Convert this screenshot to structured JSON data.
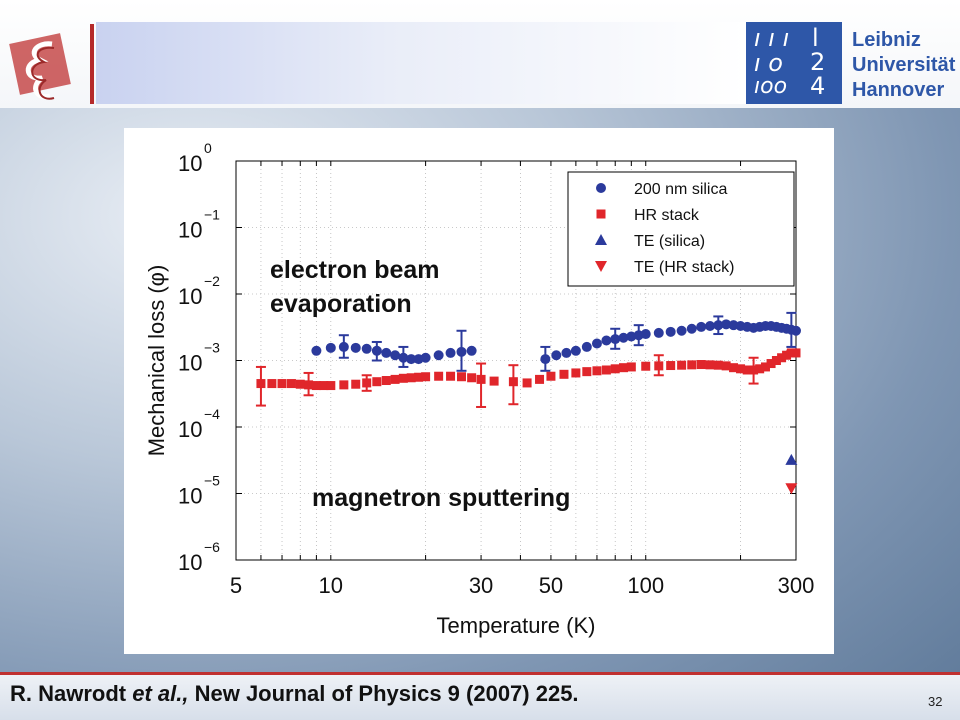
{
  "slide": {
    "logo_right": {
      "line1": "Leibniz",
      "line2": "Universität",
      "line3": "Hannover"
    },
    "page_number": "32",
    "citation": {
      "authors": "R. Nawrodt ",
      "etal": "et al.,",
      "rest": " New Journal of Physics 9 (2007) 225."
    }
  },
  "annotations": {
    "ebeam_line1": "electron beam",
    "ebeam_line2": "evaporation",
    "sputter": "magnetron sputtering"
  },
  "colors": {
    "blue": "#2b3a9c",
    "red": "#e0262b"
  },
  "chart_data": {
    "type": "scatter",
    "title": "",
    "xlabel": "Temperature (K)",
    "ylabel": "Mechanical loss (φ)",
    "xscale": "log",
    "yscale": "log",
    "xlim": [
      5,
      300
    ],
    "ylim": [
      1e-06,
      1
    ],
    "xticks": [
      5,
      10,
      30,
      50,
      100,
      300
    ],
    "xtick_labels": [
      "5",
      "10",
      "30",
      "50",
      "100",
      "300"
    ],
    "yticks": [
      1e-06,
      1e-05,
      0.0001,
      0.001,
      0.01,
      0.1,
      1
    ],
    "ytick_exponents": [
      "−6",
      "−5",
      "−4",
      "−3",
      "−2",
      "−1",
      "0"
    ],
    "grid": true,
    "legend_position": "top-right",
    "series": [
      {
        "name": "200 nm silica",
        "marker": "circle",
        "color": "#2b3a9c",
        "x": [
          9,
          10,
          11,
          12,
          13,
          14,
          15,
          16,
          17,
          18,
          19,
          20,
          22,
          24,
          26,
          28,
          48,
          52,
          56,
          60,
          65,
          70,
          75,
          80,
          85,
          90,
          95,
          100,
          110,
          120,
          130,
          140,
          150,
          160,
          170,
          180,
          190,
          200,
          210,
          220,
          230,
          240,
          250,
          260,
          270,
          280,
          290,
          300
        ],
        "y": [
          0.0014,
          0.00155,
          0.0016,
          0.00155,
          0.0015,
          0.0014,
          0.0013,
          0.0012,
          0.0011,
          0.00105,
          0.00105,
          0.0011,
          0.0012,
          0.0013,
          0.00135,
          0.0014,
          0.00105,
          0.0012,
          0.0013,
          0.0014,
          0.0016,
          0.0018,
          0.002,
          0.0021,
          0.0022,
          0.0023,
          0.0024,
          0.0025,
          0.0026,
          0.0027,
          0.0028,
          0.003,
          0.0032,
          0.0033,
          0.0034,
          0.0035,
          0.0034,
          0.0033,
          0.0032,
          0.0031,
          0.0032,
          0.0033,
          0.0033,
          0.0032,
          0.0031,
          0.003,
          0.0029,
          0.0028
        ]
      },
      {
        "name": "HR stack",
        "marker": "square",
        "color": "#e0262b",
        "x": [
          6,
          6.5,
          7,
          7.5,
          8,
          8.5,
          9,
          9.5,
          10,
          11,
          12,
          13,
          14,
          15,
          16,
          17,
          18,
          19,
          20,
          22,
          24,
          26,
          28,
          30,
          33,
          38,
          42,
          46,
          50,
          55,
          60,
          65,
          70,
          75,
          80,
          85,
          90,
          100,
          110,
          120,
          130,
          140,
          150,
          160,
          170,
          180,
          190,
          200,
          210,
          220,
          230,
          240,
          250,
          260,
          270,
          280,
          290,
          300
        ],
        "y": [
          0.00045,
          0.00045,
          0.00045,
          0.00045,
          0.00044,
          0.00043,
          0.00042,
          0.00042,
          0.00042,
          0.00043,
          0.00044,
          0.00046,
          0.00048,
          0.0005,
          0.00052,
          0.00054,
          0.00055,
          0.00056,
          0.00057,
          0.00058,
          0.00058,
          0.00057,
          0.00055,
          0.00052,
          0.00049,
          0.00048,
          0.00046,
          0.00052,
          0.00058,
          0.00062,
          0.00065,
          0.00068,
          0.0007,
          0.00072,
          0.00075,
          0.00078,
          0.0008,
          0.00082,
          0.00083,
          0.00084,
          0.00085,
          0.00086,
          0.00087,
          0.00086,
          0.00085,
          0.00083,
          0.00078,
          0.00075,
          0.00072,
          0.00072,
          0.00075,
          0.0008,
          0.0009,
          0.001,
          0.0011,
          0.0012,
          0.0013,
          0.0013
        ]
      },
      {
        "name": "TE (silica)",
        "marker": "triangle-up",
        "color": "#2b3a9c",
        "x": [
          290
        ],
        "y": [
          3.2e-05
        ]
      },
      {
        "name": "TE (HR stack)",
        "marker": "triangle-down",
        "color": "#e0262b",
        "x": [
          290
        ],
        "y": [
          1.2e-05
        ]
      }
    ],
    "error_bars": [
      {
        "series": "200 nm silica",
        "x": 11,
        "y": 0.0016,
        "low": 0.0011,
        "high": 0.0024
      },
      {
        "series": "200 nm silica",
        "x": 14,
        "y": 0.0014,
        "low": 0.001,
        "high": 0.0019
      },
      {
        "series": "200 nm silica",
        "x": 17,
        "y": 0.0011,
        "low": 0.0008,
        "high": 0.0016
      },
      {
        "series": "200 nm silica",
        "x": 26,
        "y": 0.0014,
        "low": 0.0007,
        "high": 0.0028
      },
      {
        "series": "200 nm silica",
        "x": 48,
        "y": 0.00105,
        "low": 0.0007,
        "high": 0.0016
      },
      {
        "series": "200 nm silica",
        "x": 80,
        "y": 0.0021,
        "low": 0.0015,
        "high": 0.003
      },
      {
        "series": "200 nm silica",
        "x": 95,
        "y": 0.0024,
        "low": 0.0017,
        "high": 0.0034
      },
      {
        "series": "200 nm silica",
        "x": 170,
        "y": 0.0034,
        "low": 0.0025,
        "high": 0.0046
      },
      {
        "series": "200 nm silica",
        "x": 290,
        "y": 0.0029,
        "low": 0.0016,
        "high": 0.0052
      },
      {
        "series": "HR stack",
        "x": 6,
        "y": 0.00045,
        "low": 0.00021,
        "high": 0.0008
      },
      {
        "series": "HR stack",
        "x": 8.5,
        "y": 0.00043,
        "low": 0.0003,
        "high": 0.00065
      },
      {
        "series": "HR stack",
        "x": 13,
        "y": 0.00046,
        "low": 0.00035,
        "high": 0.0006
      },
      {
        "series": "HR stack",
        "x": 30,
        "y": 0.00052,
        "low": 0.0002,
        "high": 0.0009
      },
      {
        "series": "HR stack",
        "x": 38,
        "y": 0.00048,
        "low": 0.00022,
        "high": 0.00085
      },
      {
        "series": "HR stack",
        "x": 110,
        "y": 0.00083,
        "low": 0.0006,
        "high": 0.0012
      },
      {
        "series": "HR stack",
        "x": 220,
        "y": 0.00072,
        "low": 0.00045,
        "high": 0.0011
      },
      {
        "series": "HR stack",
        "x": 290,
        "y": 0.0013,
        "low": 0.0012,
        "high": 0.0014
      }
    ]
  }
}
